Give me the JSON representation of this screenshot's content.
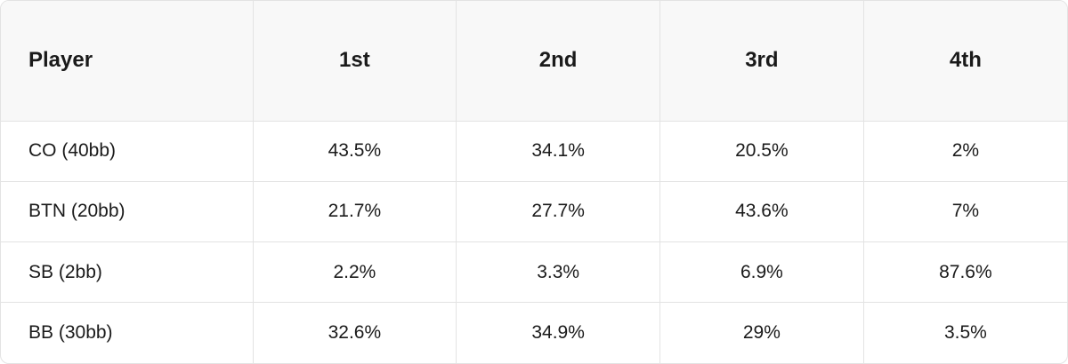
{
  "table": {
    "header": [
      "Player",
      "1st",
      "2nd",
      "3rd",
      "4th"
    ],
    "rows": [
      [
        "CO (40bb)",
        "43.5%",
        "34.1%",
        "20.5%",
        "2%"
      ],
      [
        "BTN (20bb)",
        "21.7%",
        "27.7%",
        "43.6%",
        "7%"
      ],
      [
        "SB (2bb)",
        "2.2%",
        "3.3%",
        "6.9%",
        "87.6%"
      ],
      [
        "BB (30bb)",
        "32.6%",
        "34.9%",
        "29%",
        "3.5%"
      ]
    ]
  }
}
